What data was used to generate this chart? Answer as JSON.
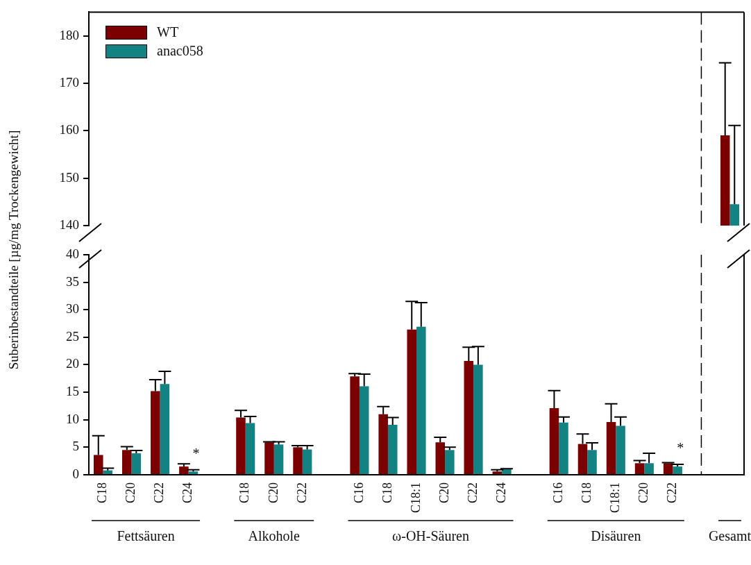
{
  "chart_data": [
    {
      "type": "bar",
      "categories": [
        null,
        null,
        null,
        null,
        null,
        null,
        null,
        null,
        null,
        null,
        null,
        null,
        null,
        null,
        null,
        null,
        null,
        null,
        null,
        null,
        null,
        null,
        null
      ],
      "series": [
        {
          "name": "WT",
          "color": "#7b0000",
          "values": [
            null,
            null,
            null,
            null,
            null,
            null,
            null,
            null,
            null,
            null,
            null,
            null,
            null,
            null,
            null,
            null,
            null,
            null,
            null,
            null,
            null,
            null,
            159.0
          ],
          "errors": [
            null,
            null,
            null,
            null,
            null,
            null,
            null,
            null,
            null,
            null,
            null,
            null,
            null,
            null,
            null,
            null,
            null,
            null,
            null,
            null,
            null,
            null,
            [
              159.0,
              174.3
            ]
          ]
        },
        {
          "name": "anac058",
          "color": "#138282",
          "values": [
            null,
            null,
            null,
            null,
            null,
            null,
            null,
            null,
            null,
            null,
            null,
            null,
            null,
            null,
            null,
            null,
            null,
            null,
            null,
            null,
            null,
            null,
            144.5
          ],
          "errors": [
            null,
            null,
            null,
            null,
            null,
            null,
            null,
            null,
            null,
            null,
            null,
            null,
            null,
            null,
            null,
            null,
            null,
            null,
            null,
            null,
            null,
            null,
            [
              144.5,
              161.1
            ]
          ]
        }
      ],
      "ylim": [
        140,
        185
      ],
      "yticks": [
        140,
        150,
        160,
        170,
        180
      ],
      "tick_labels": "y",
      "legend": "top left"
    },
    {
      "type": "bar",
      "categories": [
        "C18",
        "C20",
        "C22",
        "C24",
        null,
        "C18",
        "C20",
        "C22",
        null,
        "C16",
        "C18",
        "C18:1",
        "C20",
        "C22",
        "C24",
        null,
        "C16",
        "C18",
        "C18:1",
        "C20",
        "C22",
        null,
        null
      ],
      "ylabel": "Suberinbestandteile [µg/mg Trockengewicht]",
      "series": [
        {
          "color": "#7b0000",
          "values": [
            3.6,
            4.5,
            15.2,
            1.5,
            null,
            10.4,
            5.9,
            5.0,
            null,
            17.9,
            11.0,
            26.4,
            5.9,
            20.7,
            0.6,
            null,
            12.1,
            5.6,
            9.6,
            2.1,
            2.1,
            null,
            null
          ],
          "errors": [
            [
              3.6,
              7.1
            ],
            [
              4.5,
              5.1
            ],
            [
              15.2,
              17.3
            ],
            [
              1.5,
              2.0
            ],
            null,
            [
              10.4,
              11.7
            ],
            [
              5.9,
              6.0
            ],
            [
              5.0,
              5.3
            ],
            null,
            [
              17.9,
              18.4
            ],
            [
              11.0,
              12.4
            ],
            [
              26.4,
              31.5
            ],
            [
              5.9,
              6.8
            ],
            [
              20.7,
              23.2
            ],
            [
              0.6,
              0.9
            ],
            null,
            [
              12.1,
              15.3
            ],
            [
              5.6,
              7.4
            ],
            [
              9.6,
              12.9
            ],
            [
              2.1,
              2.6
            ],
            [
              2.1,
              2.2
            ],
            null,
            null
          ]
        },
        {
          "color": "#138282",
          "values": [
            0.8,
            3.9,
            16.5,
            0.6,
            null,
            9.4,
            5.5,
            4.6,
            null,
            16.1,
            9.1,
            26.9,
            4.5,
            20.0,
            1.0,
            null,
            9.5,
            4.5,
            8.9,
            2.1,
            1.5,
            null,
            null
          ],
          "errors": [
            [
              0.8,
              1.2
            ],
            [
              3.9,
              4.4
            ],
            [
              16.5,
              18.8
            ],
            [
              0.6,
              0.9
            ],
            null,
            [
              9.4,
              10.6
            ],
            [
              5.5,
              6.0
            ],
            [
              4.6,
              5.3
            ],
            null,
            [
              16.1,
              18.3
            ],
            [
              9.1,
              10.4
            ],
            [
              26.9,
              31.3
            ],
            [
              4.5,
              5.0
            ],
            [
              20.0,
              23.3
            ],
            [
              1.0,
              1.1
            ],
            null,
            [
              9.5,
              10.5
            ],
            [
              4.5,
              5.8
            ],
            [
              8.9,
              10.5
            ],
            [
              2.1,
              3.9
            ],
            [
              1.5,
              1.9
            ],
            null,
            null
          ],
          "value_labels": [
            null,
            null,
            null,
            "*",
            null,
            null,
            null,
            null,
            null,
            null,
            null,
            null,
            null,
            null,
            null,
            null,
            null,
            null,
            null,
            null,
            "*",
            null,
            null
          ]
        }
      ],
      "ylim": [
        0,
        40
      ],
      "yticks": [
        0,
        5,
        10,
        15,
        20,
        25,
        30,
        35,
        40
      ],
      "annotations": [
        "Fettsäuren",
        "Alkohole",
        "ω-OH-Säuren",
        "Disäuren",
        "Gesamt"
      ]
    }
  ]
}
